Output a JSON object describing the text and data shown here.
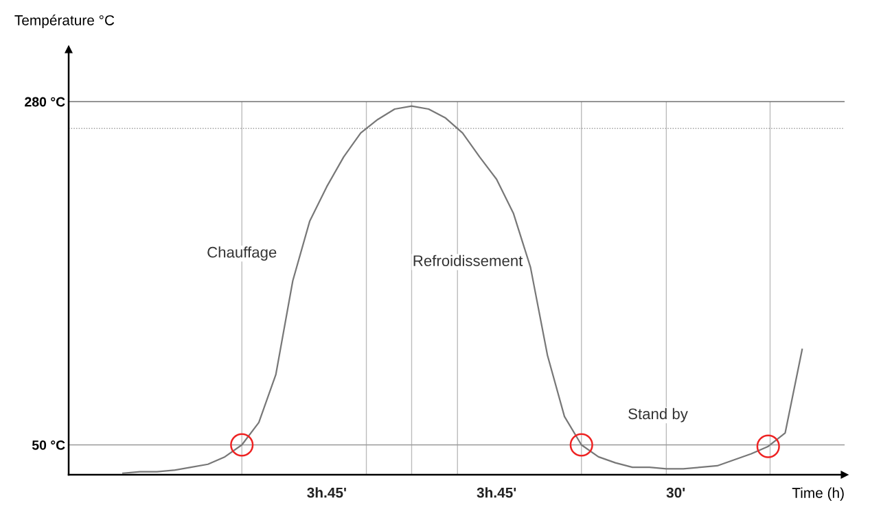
{
  "chart_data": {
    "type": "line",
    "xlabel": "Time (h)",
    "ylabel": "Température °C",
    "categories": [
      null,
      null,
      null,
      null,
      null,
      null,
      null,
      null,
      null,
      null,
      null,
      null,
      null,
      null,
      null,
      null,
      null,
      null,
      null,
      null,
      null,
      null,
      null,
      null,
      null,
      null,
      null,
      null,
      null,
      null,
      null,
      null,
      null,
      null,
      null,
      null,
      null,
      null,
      null,
      null,
      null
    ],
    "series": [
      {
        "color": "#777777",
        "values": [
          31,
          32,
          32,
          33,
          35,
          37,
          42,
          50,
          65,
          97,
          160,
          200,
          223,
          243,
          259,
          268,
          275,
          277,
          275,
          269,
          259,
          243,
          228,
          205,
          169,
          110,
          69,
          50,
          42,
          38,
          35,
          35,
          34,
          34,
          35,
          36,
          40,
          44,
          49,
          58,
          114
        ]
      },
      {
        "type": "scatter",
        "marker": "circle",
        "color": "#ee2222",
        "values": [
          null,
          null,
          null,
          null,
          null,
          null,
          null,
          50,
          null,
          null,
          null,
          null,
          null,
          null,
          null,
          null,
          null,
          null,
          null,
          null,
          null,
          null,
          null,
          null,
          null,
          null,
          null,
          50,
          null,
          null,
          null,
          null,
          null,
          null,
          null,
          null,
          null,
          null,
          49,
          null,
          null
        ]
      }
    ],
    "ylim": [
      30,
      315
    ],
    "yticks": [
      {
        "value": 280,
        "label": "280 °C"
      },
      {
        "value": 50,
        "label": "50 °C"
      }
    ],
    "grid": "x",
    "legend": false,
    "marker": "none",
    "line_style": "solid",
    "ref_lines": [
      {
        "axis": "y",
        "value": 280,
        "color": "#555555",
        "line_style": "solid"
      },
      {
        "axis": "y",
        "value": 262,
        "color": "#999999",
        "line_style": "dotted"
      },
      {
        "axis": "y",
        "value": 50,
        "color": "#999999",
        "line_style": "solid"
      }
    ],
    "annotations": [
      "Chauffage",
      "Refroidissement",
      "Stand by",
      "3h.45'",
      "3h.45'",
      "30'"
    ]
  }
}
